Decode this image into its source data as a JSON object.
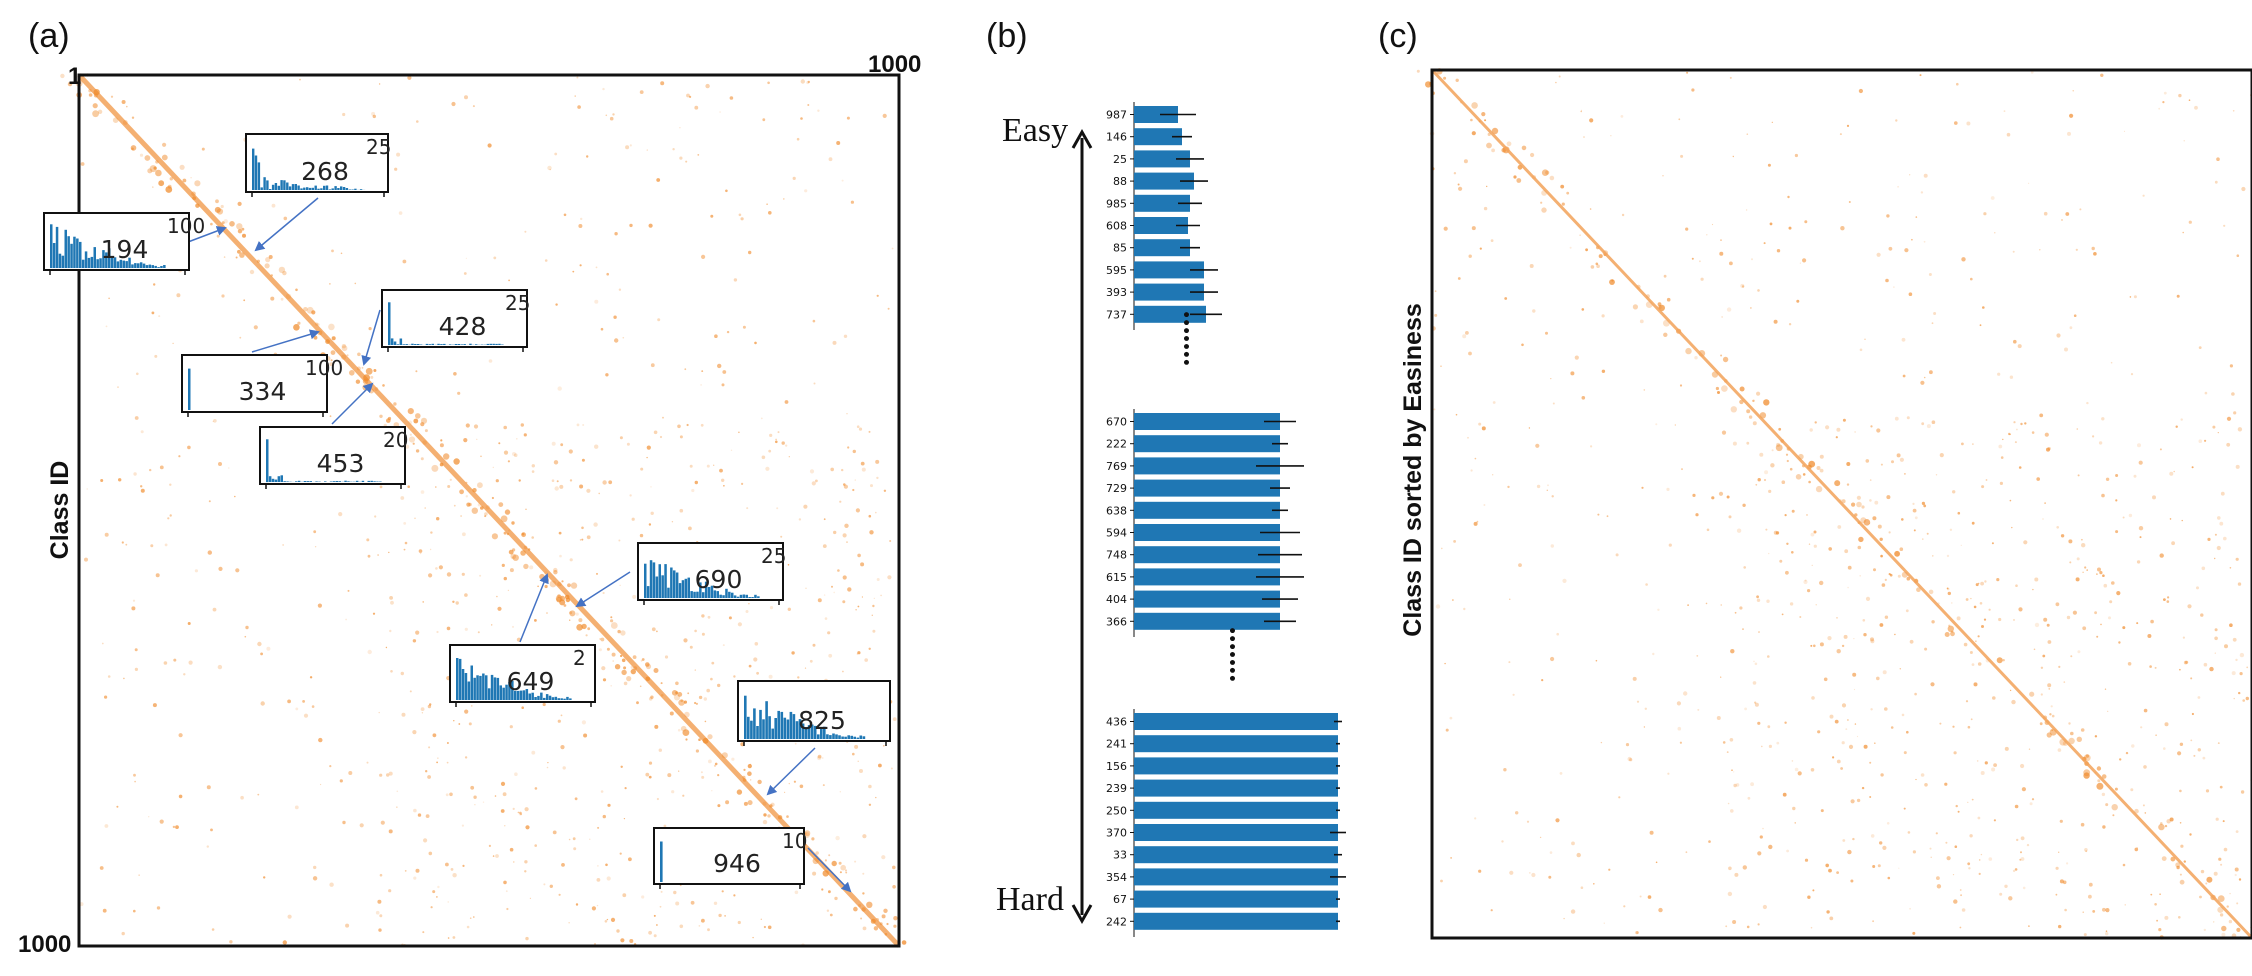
{
  "colors": {
    "diag": "#f3a35a",
    "dot": "#f08a2a",
    "bar": "#1f77b4",
    "arrow": "#4472c4",
    "frame": "#111111"
  },
  "panels": {
    "a": {
      "label": "(a)",
      "ylabel": "Class ID",
      "corner_top_left": "1",
      "corner_top_right": "1000",
      "corner_bottom_left": "1000",
      "insets": [
        {
          "id": "268",
          "tick": "25"
        },
        {
          "id": "194",
          "tick": "100"
        },
        {
          "id": "428",
          "tick": "25"
        },
        {
          "id": "334",
          "tick": "100"
        },
        {
          "id": "453",
          "tick": "20"
        },
        {
          "id": "690",
          "tick": "25"
        },
        {
          "id": "649",
          "tick": "2"
        },
        {
          "id": "825",
          "tick": ""
        },
        {
          "id": "946",
          "tick": "10"
        }
      ]
    },
    "b": {
      "label": "(b)",
      "easy_label": "Easy",
      "hard_label": "Hard",
      "dots_label": "•••••••"
    },
    "c": {
      "label": "(c)",
      "ylabel": "Class ID sorted by Easiness"
    }
  },
  "chart_data": [
    {
      "type": "heatmap",
      "panel": "a",
      "description_of_axes": "1000 x 1000 matrix, class order 1..1000",
      "ylabel": "Class ID",
      "xlim": [
        1,
        1000
      ],
      "ylim": [
        1,
        1000
      ],
      "highlighted_classes": [
        268,
        194,
        428,
        334,
        453,
        690,
        649,
        825,
        946
      ]
    },
    {
      "type": "bar",
      "panel": "b",
      "orientation": "horizontal",
      "groups": [
        {
          "position": "easy",
          "categories": [
            "987",
            "146",
            "25",
            "88",
            "985",
            "608",
            "85",
            "595",
            "393",
            "737"
          ],
          "values": [
            0.22,
            0.24,
            0.28,
            0.3,
            0.28,
            0.27,
            0.28,
            0.35,
            0.35,
            0.36
          ],
          "errors": [
            0.09,
            0.05,
            0.07,
            0.07,
            0.06,
            0.06,
            0.05,
            0.07,
            0.07,
            0.08
          ]
        },
        {
          "position": "middle",
          "categories": [
            "670",
            "222",
            "769",
            "729",
            "638",
            "594",
            "748",
            "615",
            "404",
            "366"
          ],
          "values": [
            0.73,
            0.73,
            0.73,
            0.73,
            0.73,
            0.73,
            0.73,
            0.73,
            0.73,
            0.73
          ],
          "errors": [
            0.08,
            0.04,
            0.12,
            0.05,
            0.04,
            0.1,
            0.11,
            0.12,
            0.09,
            0.08
          ]
        },
        {
          "position": "hard",
          "categories": [
            "436",
            "241",
            "156",
            "239",
            "250",
            "370",
            "33",
            "354",
            "67",
            "242"
          ],
          "values": [
            1.02,
            1.02,
            1.02,
            1.02,
            1.02,
            1.02,
            1.02,
            1.02,
            1.02,
            1.02
          ],
          "errors": [
            0.02,
            0.01,
            0.01,
            0.01,
            0.01,
            0.04,
            0.02,
            0.04,
            0.01,
            0.01
          ]
        }
      ]
    },
    {
      "type": "heatmap",
      "panel": "c",
      "ylabel": "Class ID sorted by Easiness",
      "xlim": [
        1,
        1000
      ],
      "ylim": [
        1,
        1000
      ]
    }
  ]
}
